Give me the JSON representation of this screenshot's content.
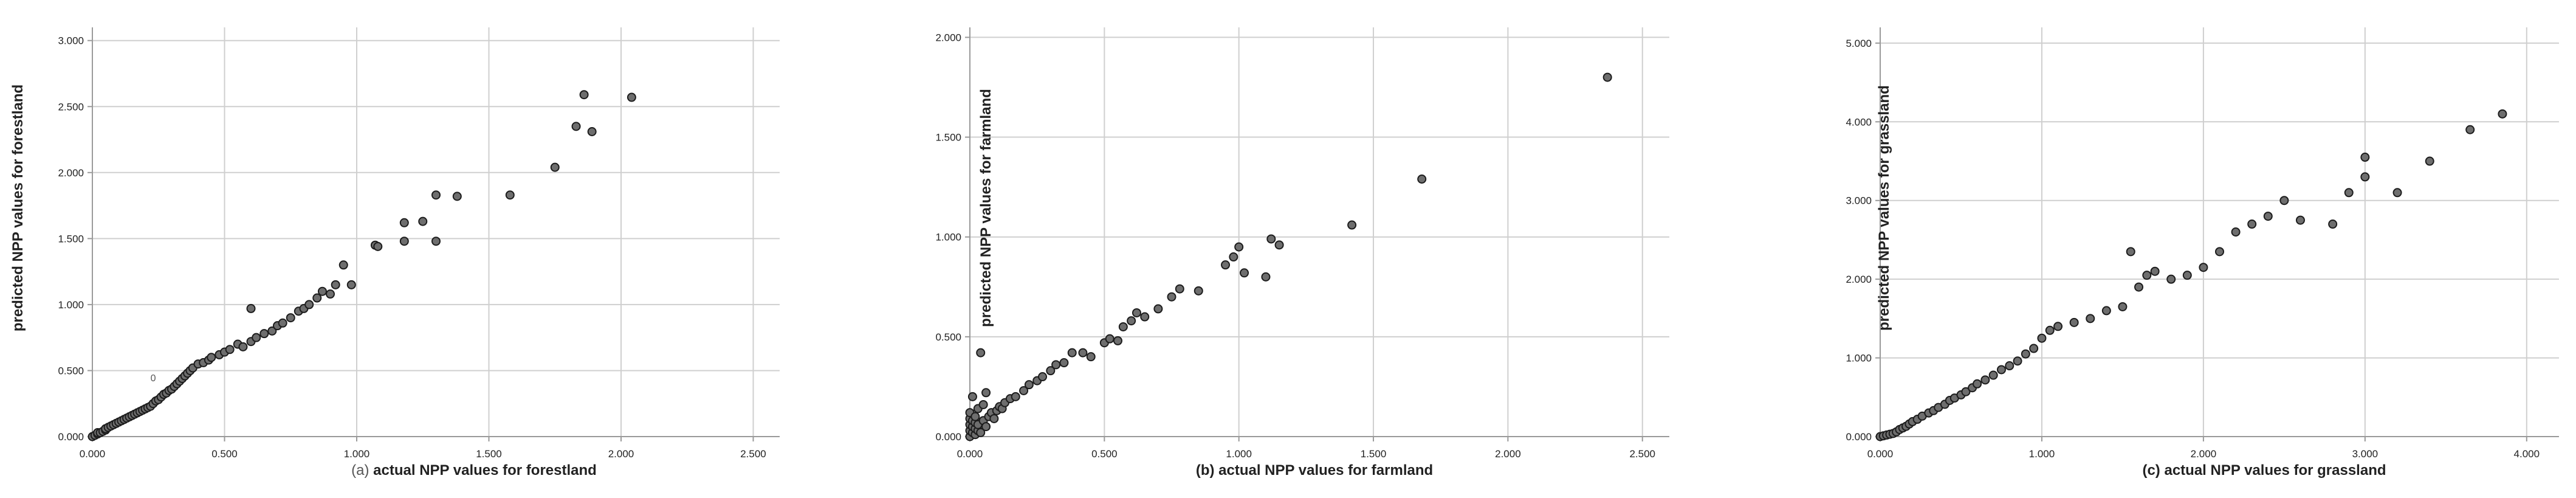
{
  "chart_data": [
    {
      "type": "scatter",
      "xlabel_prefix": "(a)",
      "xlabel": "actual NPP values for forestland",
      "ylabel": "predicted NPP values for forestland",
      "xlim": [
        0,
        2.6
      ],
      "ylim": [
        0,
        3.1
      ],
      "xticks": [
        "0.000",
        "0.500",
        "1.000",
        "1.500",
        "2.000",
        "2.500"
      ],
      "xtick_values": [
        0,
        0.5,
        1.0,
        1.5,
        2.0,
        2.5
      ],
      "yticks": [
        "0.000",
        "0.500",
        "1.000",
        "1.500",
        "2.000",
        "2.500",
        "3.000"
      ],
      "ytick_values": [
        0,
        0.5,
        1.0,
        1.5,
        2.0,
        2.5,
        3.0
      ],
      "grid": true,
      "annotations": [
        {
          "text": "0",
          "x": 0.23,
          "y": 0.42
        }
      ],
      "points": [
        [
          0.0,
          0.0
        ],
        [
          0.01,
          0.01
        ],
        [
          0.02,
          0.02
        ],
        [
          0.02,
          0.03
        ],
        [
          0.03,
          0.03
        ],
        [
          0.04,
          0.04
        ],
        [
          0.05,
          0.05
        ],
        [
          0.05,
          0.06
        ],
        [
          0.06,
          0.07
        ],
        [
          0.07,
          0.08
        ],
        [
          0.08,
          0.09
        ],
        [
          0.09,
          0.1
        ],
        [
          0.1,
          0.11
        ],
        [
          0.11,
          0.12
        ],
        [
          0.12,
          0.13
        ],
        [
          0.13,
          0.14
        ],
        [
          0.14,
          0.15
        ],
        [
          0.15,
          0.16
        ],
        [
          0.16,
          0.17
        ],
        [
          0.17,
          0.18
        ],
        [
          0.18,
          0.19
        ],
        [
          0.19,
          0.2
        ],
        [
          0.2,
          0.21
        ],
        [
          0.21,
          0.22
        ],
        [
          0.22,
          0.23
        ],
        [
          0.23,
          0.25
        ],
        [
          0.24,
          0.27
        ],
        [
          0.25,
          0.28
        ],
        [
          0.26,
          0.3
        ],
        [
          0.27,
          0.32
        ],
        [
          0.28,
          0.33
        ],
        [
          0.29,
          0.35
        ],
        [
          0.3,
          0.36
        ],
        [
          0.31,
          0.38
        ],
        [
          0.32,
          0.4
        ],
        [
          0.33,
          0.42
        ],
        [
          0.34,
          0.44
        ],
        [
          0.35,
          0.46
        ],
        [
          0.36,
          0.48
        ],
        [
          0.37,
          0.5
        ],
        [
          0.38,
          0.52
        ],
        [
          0.4,
          0.55
        ],
        [
          0.42,
          0.56
        ],
        [
          0.44,
          0.58
        ],
        [
          0.45,
          0.6
        ],
        [
          0.48,
          0.62
        ],
        [
          0.5,
          0.64
        ],
        [
          0.52,
          0.66
        ],
        [
          0.55,
          0.7
        ],
        [
          0.57,
          0.68
        ],
        [
          0.6,
          0.72
        ],
        [
          0.6,
          0.97
        ],
        [
          0.62,
          0.75
        ],
        [
          0.65,
          0.78
        ],
        [
          0.68,
          0.8
        ],
        [
          0.7,
          0.84
        ],
        [
          0.72,
          0.86
        ],
        [
          0.75,
          0.9
        ],
        [
          0.78,
          0.95
        ],
        [
          0.8,
          0.97
        ],
        [
          0.82,
          1.0
        ],
        [
          0.85,
          1.05
        ],
        [
          0.87,
          1.1
        ],
        [
          0.9,
          1.08
        ],
        [
          0.92,
          1.15
        ],
        [
          0.95,
          1.3
        ],
        [
          0.98,
          1.15
        ],
        [
          1.07,
          1.45
        ],
        [
          1.08,
          1.44
        ],
        [
          1.18,
          1.62
        ],
        [
          1.18,
          1.48
        ],
        [
          1.25,
          1.63
        ],
        [
          1.3,
          1.48
        ],
        [
          1.3,
          1.83
        ],
        [
          1.38,
          1.82
        ],
        [
          1.58,
          1.83
        ],
        [
          1.75,
          2.04
        ],
        [
          1.83,
          2.35
        ],
        [
          1.86,
          2.59
        ],
        [
          1.89,
          2.31
        ],
        [
          2.04,
          2.57
        ]
      ]
    },
    {
      "type": "scatter",
      "xlabel_prefix": "",
      "xlabel": "(b) actual NPP values for farmland",
      "ylabel": "predicted NPP values for farmland",
      "xlim": [
        0,
        2.6
      ],
      "ylim": [
        0,
        2.05
      ],
      "xticks": [
        "0.000",
        "0.500",
        "1.000",
        "1.500",
        "2.000",
        "2.500"
      ],
      "xtick_values": [
        0,
        0.5,
        1.0,
        1.5,
        2.0,
        2.5
      ],
      "yticks": [
        "0.000",
        "0.500",
        "1.000",
        "1.500",
        "2.000"
      ],
      "ytick_values": [
        0,
        0.5,
        1.0,
        1.5,
        2.0
      ],
      "grid": true,
      "annotations": [],
      "points": [
        [
          0.0,
          0.0
        ],
        [
          0.0,
          0.03
        ],
        [
          0.0,
          0.06
        ],
        [
          0.0,
          0.09
        ],
        [
          0.0,
          0.12
        ],
        [
          0.01,
          0.02
        ],
        [
          0.01,
          0.05
        ],
        [
          0.01,
          0.08
        ],
        [
          0.01,
          0.2
        ],
        [
          0.02,
          0.01
        ],
        [
          0.02,
          0.04
        ],
        [
          0.02,
          0.07
        ],
        [
          0.02,
          0.1
        ],
        [
          0.03,
          0.03
        ],
        [
          0.03,
          0.06
        ],
        [
          0.03,
          0.14
        ],
        [
          0.04,
          0.42
        ],
        [
          0.04,
          0.02
        ],
        [
          0.05,
          0.08
        ],
        [
          0.05,
          0.16
        ],
        [
          0.06,
          0.05
        ],
        [
          0.06,
          0.22
        ],
        [
          0.07,
          0.1
        ],
        [
          0.08,
          0.12
        ],
        [
          0.09,
          0.09
        ],
        [
          0.1,
          0.13
        ],
        [
          0.11,
          0.15
        ],
        [
          0.12,
          0.14
        ],
        [
          0.13,
          0.17
        ],
        [
          0.15,
          0.19
        ],
        [
          0.17,
          0.2
        ],
        [
          0.2,
          0.23
        ],
        [
          0.22,
          0.26
        ],
        [
          0.25,
          0.28
        ],
        [
          0.27,
          0.3
        ],
        [
          0.3,
          0.33
        ],
        [
          0.32,
          0.36
        ],
        [
          0.35,
          0.37
        ],
        [
          0.38,
          0.42
        ],
        [
          0.42,
          0.42
        ],
        [
          0.45,
          0.4
        ],
        [
          0.5,
          0.47
        ],
        [
          0.52,
          0.49
        ],
        [
          0.55,
          0.48
        ],
        [
          0.57,
          0.55
        ],
        [
          0.6,
          0.58
        ],
        [
          0.62,
          0.62
        ],
        [
          0.65,
          0.6
        ],
        [
          0.7,
          0.64
        ],
        [
          0.75,
          0.7
        ],
        [
          0.78,
          0.74
        ],
        [
          0.85,
          0.73
        ],
        [
          0.95,
          0.86
        ],
        [
          0.98,
          0.9
        ],
        [
          1.0,
          0.95
        ],
        [
          1.02,
          0.82
        ],
        [
          1.1,
          0.8
        ],
        [
          1.12,
          0.99
        ],
        [
          1.15,
          0.96
        ],
        [
          1.42,
          1.06
        ],
        [
          1.68,
          1.29
        ],
        [
          2.37,
          1.8
        ]
      ]
    },
    {
      "type": "scatter",
      "xlabel_prefix": "",
      "xlabel": "(c) actual NPP values for grassland",
      "ylabel": "predicted NPP values for grassland",
      "xlim": [
        0,
        4.2
      ],
      "ylim": [
        0,
        5.2
      ],
      "xticks": [
        "0.000",
        "1.000",
        "2.000",
        "3.000",
        "4.000"
      ],
      "xtick_values": [
        0,
        1.0,
        2.0,
        3.0,
        4.0
      ],
      "yticks": [
        "0.000",
        "1.000",
        "2.000",
        "3.000",
        "4.000",
        "5.000"
      ],
      "ytick_values": [
        0,
        1.0,
        2.0,
        3.0,
        4.0,
        5.0
      ],
      "grid": true,
      "annotations": [],
      "points": [
        [
          0.0,
          0.0
        ],
        [
          0.02,
          0.01
        ],
        [
          0.04,
          0.02
        ],
        [
          0.06,
          0.03
        ],
        [
          0.08,
          0.04
        ],
        [
          0.1,
          0.06
        ],
        [
          0.12,
          0.09
        ],
        [
          0.14,
          0.11
        ],
        [
          0.16,
          0.13
        ],
        [
          0.18,
          0.16
        ],
        [
          0.2,
          0.19
        ],
        [
          0.23,
          0.22
        ],
        [
          0.26,
          0.26
        ],
        [
          0.3,
          0.3
        ],
        [
          0.33,
          0.33
        ],
        [
          0.36,
          0.37
        ],
        [
          0.4,
          0.41
        ],
        [
          0.43,
          0.46
        ],
        [
          0.46,
          0.49
        ],
        [
          0.5,
          0.53
        ],
        [
          0.53,
          0.57
        ],
        [
          0.57,
          0.62
        ],
        [
          0.6,
          0.67
        ],
        [
          0.65,
          0.72
        ],
        [
          0.7,
          0.78
        ],
        [
          0.75,
          0.85
        ],
        [
          0.8,
          0.9
        ],
        [
          0.85,
          0.96
        ],
        [
          0.9,
          1.05
        ],
        [
          0.95,
          1.12
        ],
        [
          1.0,
          1.25
        ],
        [
          1.05,
          1.35
        ],
        [
          1.1,
          1.4
        ],
        [
          1.2,
          1.45
        ],
        [
          1.3,
          1.5
        ],
        [
          1.4,
          1.6
        ],
        [
          1.5,
          1.65
        ],
        [
          1.55,
          2.35
        ],
        [
          1.6,
          1.9
        ],
        [
          1.65,
          2.05
        ],
        [
          1.7,
          2.1
        ],
        [
          1.8,
          2.0
        ],
        [
          1.9,
          2.05
        ],
        [
          2.0,
          2.15
        ],
        [
          2.1,
          2.35
        ],
        [
          2.2,
          2.6
        ],
        [
          2.3,
          2.7
        ],
        [
          2.4,
          2.8
        ],
        [
          2.5,
          3.0
        ],
        [
          2.6,
          2.75
        ],
        [
          2.8,
          2.7
        ],
        [
          2.9,
          3.1
        ],
        [
          3.0,
          3.3
        ],
        [
          3.0,
          3.55
        ],
        [
          3.2,
          3.1
        ],
        [
          3.4,
          3.5
        ],
        [
          3.65,
          3.9
        ],
        [
          3.85,
          4.1
        ]
      ]
    }
  ]
}
